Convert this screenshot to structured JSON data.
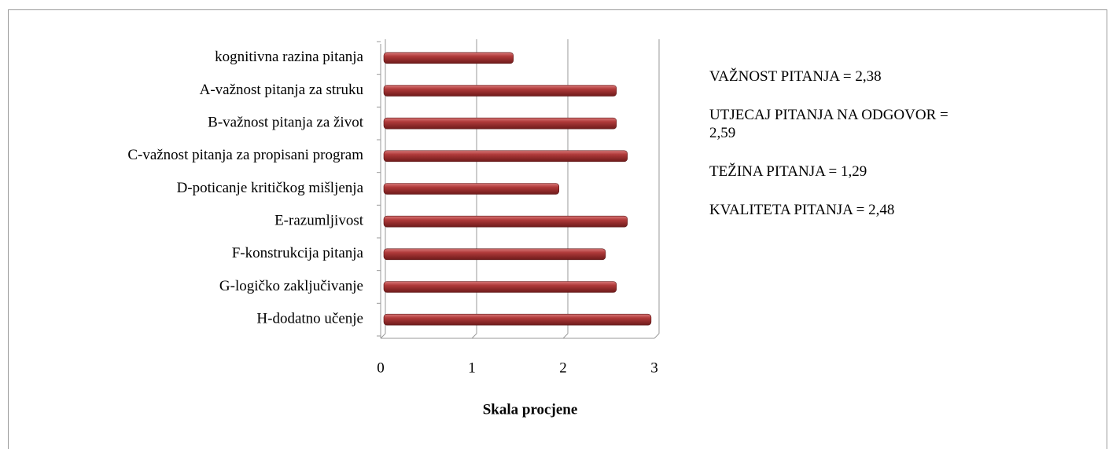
{
  "chart_data": {
    "type": "bar",
    "orientation": "horizontal",
    "categories": [
      "kognitivna razina pitanja",
      "A-važnost pitanja za struku",
      "B-važnost pitanja za život",
      "C-važnost pitanja za propisani program",
      "D-poticanje kritičkog mišljenja",
      "E-razumljivost",
      "F-konstrukcija pitanja",
      "G-logičko zaključivanje",
      "H-dodatno učenje"
    ],
    "values": [
      1.42,
      2.55,
      2.55,
      2.67,
      1.92,
      2.67,
      2.43,
      2.55,
      2.93
    ],
    "color": "#9b2c2c",
    "xlim": [
      0,
      3
    ],
    "xticks": [
      0,
      1,
      2,
      3
    ],
    "grid": true,
    "x_label": "Skala procjene",
    "annotations": [
      "VAŽNOST PITANJA = 2,38",
      "UTJECAJ PITANJA NA ODGOVOR = 2,59",
      "TEŽINA PITANJA = 1,29",
      "KVALITETA PITANJA = 2,48"
    ]
  }
}
